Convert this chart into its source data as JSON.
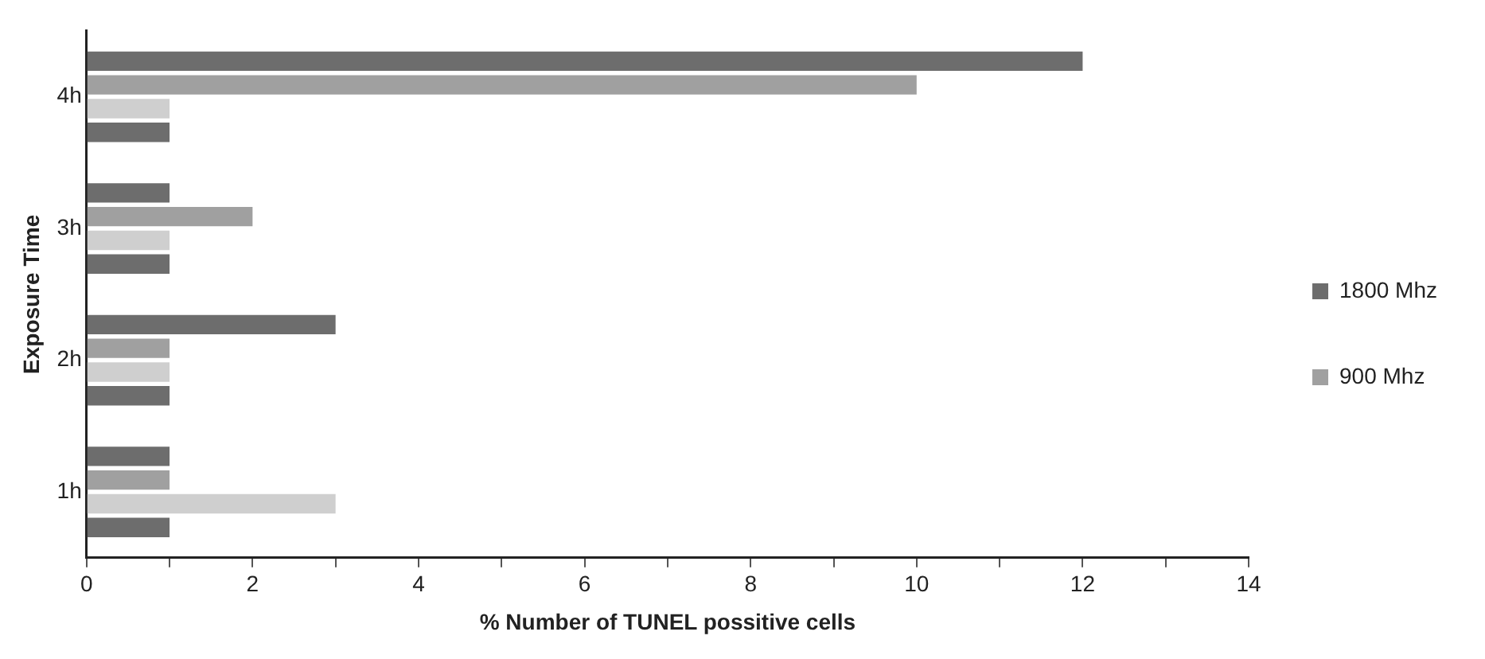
{
  "chart_data": {
    "type": "bar",
    "orientation": "horizontal",
    "xlabel": "% Number of TUNEL possitive cells",
    "ylabel": "Exposure Time",
    "categories": [
      "4h",
      "3h",
      "2h",
      "1h"
    ],
    "series": [
      {
        "name": "1800 Mhz",
        "color": "#6d6d6d",
        "values": [
          12,
          1,
          3,
          1
        ]
      },
      {
        "name": "900 Mhz",
        "color": "#a0a0a0",
        "values": [
          10,
          2,
          1,
          1
        ]
      },
      {
        "color": "#cfcfcf",
        "values": [
          1,
          1,
          1,
          3
        ]
      },
      {
        "color": "#6d6d6d",
        "values": [
          1,
          1,
          1,
          1
        ]
      }
    ],
    "xlim": [
      0,
      14
    ],
    "xticks": [
      0,
      {
        "value": 1,
        "label": null
      },
      2,
      {
        "value": 3,
        "label": null
      },
      4,
      {
        "value": 5,
        "label": null
      },
      6,
      {
        "value": 7,
        "label": null
      },
      8,
      {
        "value": 9,
        "label": null
      },
      10,
      {
        "value": 11,
        "label": null
      },
      12,
      {
        "value": 13,
        "label": null
      },
      14
    ],
    "grid": false,
    "legend": "right"
  }
}
